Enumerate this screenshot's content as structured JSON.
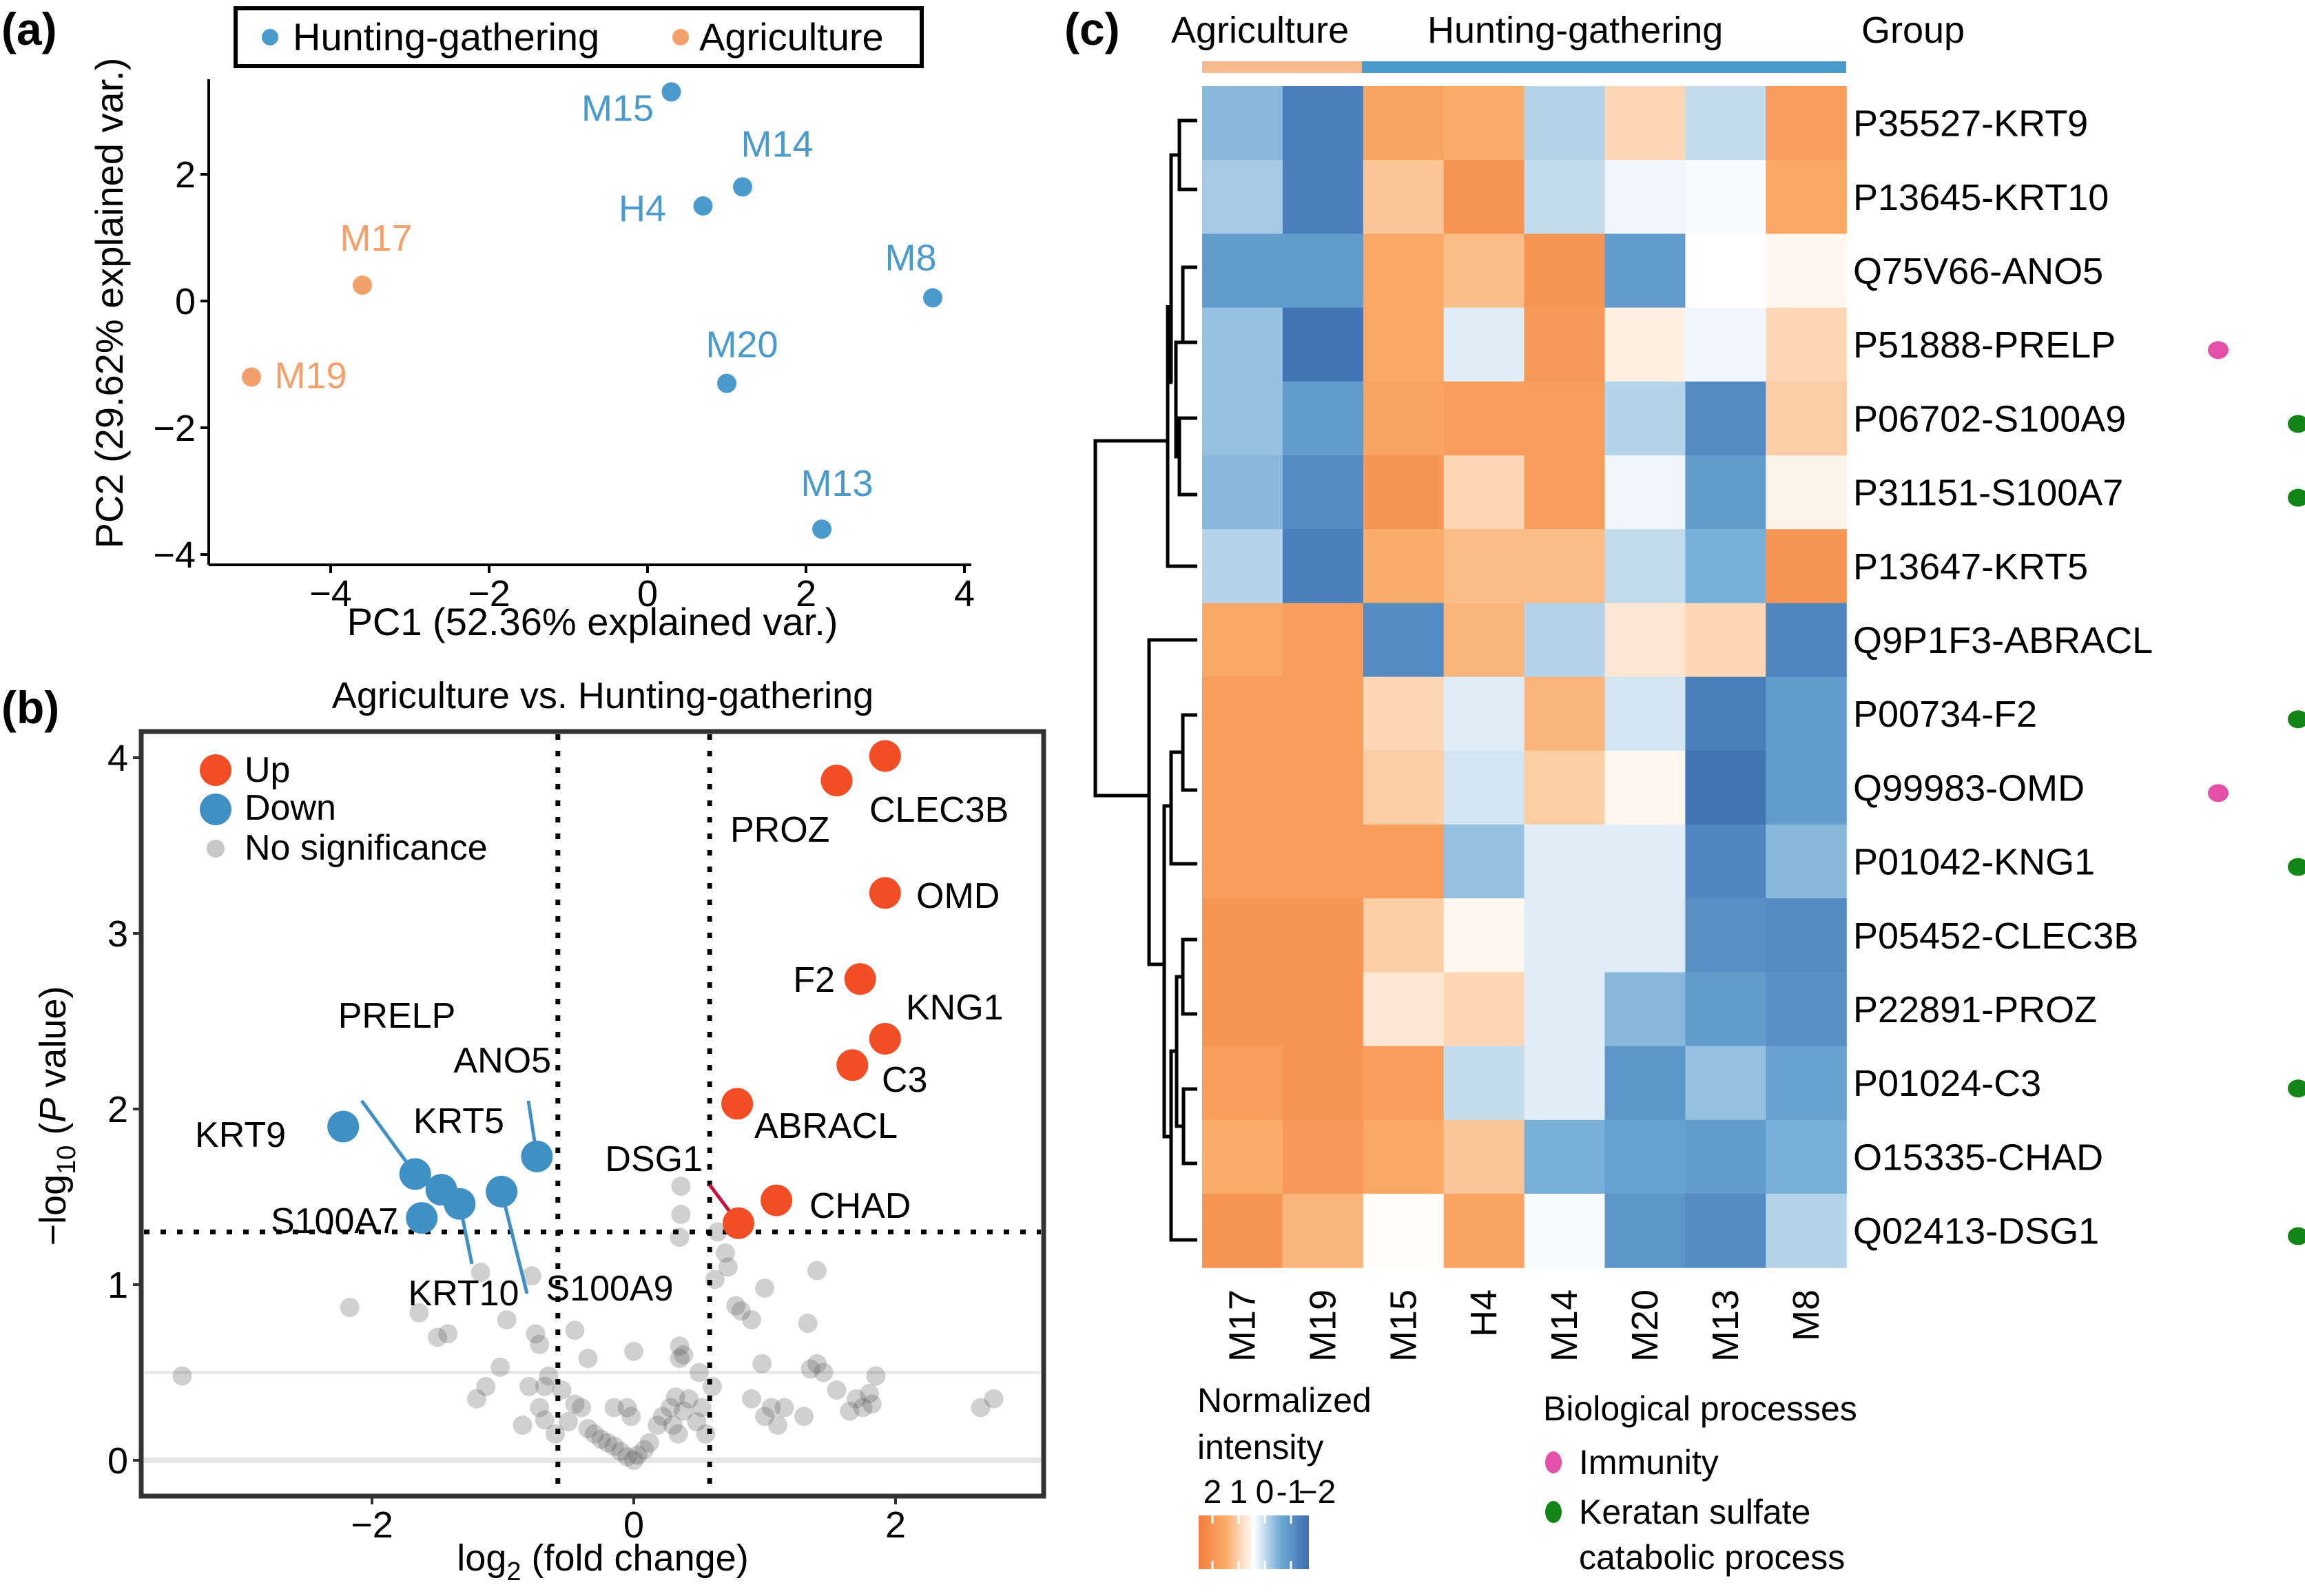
{
  "figure": {
    "panel_labels": [
      "(a)",
      "(b)",
      "(c)"
    ]
  },
  "colors": {
    "hunting_gathering": "#4a9acb",
    "agriculture": "#f4a06b",
    "up": "#f24e26",
    "down": "#3f90c4",
    "no_significance": "#b0b0b0",
    "immunity": "#e34fa9",
    "keratan": "#138518",
    "dsg1_line": "#c8103c"
  },
  "chart_data": [
    {
      "type": "scatter",
      "id": "pca",
      "xlabel": "PC1 (52.36% explained var.)",
      "ylabel": "PC2 (29.62% explained var.)",
      "xlim": [
        -5.4,
        4.0
      ],
      "ylim": [
        -4.1,
        3.6
      ],
      "xticks": [
        -4,
        -2,
        0,
        2,
        4
      ],
      "yticks": [
        -4,
        -2,
        0,
        2
      ],
      "grid": false,
      "legend": {
        "placement": "top",
        "entries": [
          "Hunting-gathering",
          "Agriculture"
        ]
      },
      "points": [
        {
          "label": "M15",
          "group": "Hunting-gathering",
          "x": 0.3,
          "y": 3.3
        },
        {
          "label": "M14",
          "group": "Hunting-gathering",
          "x": 1.2,
          "y": 1.8
        },
        {
          "label": "H4",
          "group": "Hunting-gathering",
          "x": 0.7,
          "y": 1.5
        },
        {
          "label": "M8",
          "group": "Hunting-gathering",
          "x": 3.6,
          "y": 0.05
        },
        {
          "label": "M20",
          "group": "Hunting-gathering",
          "x": 1.0,
          "y": -1.3
        },
        {
          "label": "M13",
          "group": "Hunting-gathering",
          "x": 2.2,
          "y": -3.6
        },
        {
          "label": "M17",
          "group": "Agriculture",
          "x": -3.6,
          "y": 0.25
        },
        {
          "label": "M19",
          "group": "Agriculture",
          "x": -5.0,
          "y": -1.2
        }
      ]
    },
    {
      "type": "scatter",
      "id": "volcano",
      "title": "Agriculture vs. Hunting-gathering",
      "xlabel": "log2 (fold change)",
      "ylabel": "-log10 (P value)",
      "xlim": [
        -3.7,
        3.2
      ],
      "ylim": [
        -0.1,
        4.2
      ],
      "xticks": [
        -2,
        0,
        2
      ],
      "yticks": [
        0,
        1,
        2,
        3,
        4
      ],
      "thresholds": {
        "fc": [
          -0.58,
          0.58
        ],
        "p": 1.3
      },
      "reference_lines": [
        0,
        0.5
      ],
      "legend": {
        "placement": "top-left",
        "entries": [
          "Up",
          "Down",
          "No significance"
        ]
      },
      "up": [
        {
          "label": "CLEC3B",
          "x": 1.92,
          "y": 4.01
        },
        {
          "label": "PROZ",
          "x": 1.55,
          "y": 3.87
        },
        {
          "label": "OMD",
          "x": 1.92,
          "y": 3.23
        },
        {
          "label": "F2",
          "x": 1.73,
          "y": 2.74
        },
        {
          "label": "KNG1",
          "x": 1.92,
          "y": 2.4
        },
        {
          "label": "C3",
          "x": 1.67,
          "y": 2.25
        },
        {
          "label": "ABRACL",
          "x": 0.79,
          "y": 2.03
        },
        {
          "label": "CHAD",
          "x": 1.09,
          "y": 1.48
        },
        {
          "label": "DSG1",
          "x": 0.8,
          "y": 1.35
        }
      ],
      "down": [
        {
          "label": "KRT9",
          "x": -2.22,
          "y": 1.9
        },
        {
          "label": "ANO5",
          "x": -0.74,
          "y": 1.73
        },
        {
          "label": "PRELP",
          "x": -1.67,
          "y": 1.63
        },
        {
          "label": "KRT5",
          "x": -1.47,
          "y": 1.54
        },
        {
          "label": "S100A9",
          "x": -1.01,
          "y": 1.53
        },
        {
          "label": "KRT10",
          "x": -1.33,
          "y": 1.46
        },
        {
          "label": "S100A7",
          "x": -1.62,
          "y": 1.38
        }
      ],
      "no_significance": [
        [
          -3.45,
          0.48
        ],
        [
          -2.17,
          0.87
        ],
        [
          -1.17,
          1.07
        ],
        [
          -0.78,
          1.05
        ],
        [
          -1.64,
          0.84
        ],
        [
          -1.5,
          0.7
        ],
        [
          -1.42,
          0.72
        ],
        [
          -0.97,
          0.8
        ],
        [
          -0.75,
          0.72
        ],
        [
          -0.45,
          0.74
        ],
        [
          -0.35,
          0.58
        ],
        [
          -0.72,
          0.66
        ],
        [
          -0.65,
          0.48
        ],
        [
          -0.68,
          0.42
        ],
        [
          -0.8,
          0.42
        ],
        [
          -0.72,
          0.3
        ],
        [
          -0.68,
          0.23
        ],
        [
          -1.13,
          0.42
        ],
        [
          -1.2,
          0.35
        ],
        [
          -1.02,
          0.53
        ],
        [
          -0.55,
          0.4
        ],
        [
          -0.45,
          0.32
        ],
        [
          -0.4,
          0.3
        ],
        [
          -0.5,
          0.22
        ],
        [
          -0.6,
          0.15
        ],
        [
          -0.35,
          0.18
        ],
        [
          -0.3,
          0.15
        ],
        [
          -0.25,
          0.12
        ],
        [
          -0.2,
          0.1
        ],
        [
          -0.15,
          0.08
        ],
        [
          -0.1,
          0.05
        ],
        [
          -0.05,
          0.02
        ],
        [
          0.0,
          0.0
        ],
        [
          0.03,
          0.03
        ],
        [
          0.08,
          0.06
        ],
        [
          0.12,
          0.1
        ],
        [
          0.18,
          0.2
        ],
        [
          0.22,
          0.25
        ],
        [
          0.28,
          0.3
        ],
        [
          0.3,
          0.2
        ],
        [
          0.34,
          0.15
        ],
        [
          0.38,
          0.28
        ],
        [
          0.42,
          0.35
        ],
        [
          0.32,
          0.36
        ],
        [
          0.38,
          0.6
        ],
        [
          0.35,
          0.65
        ],
        [
          0.5,
          0.5
        ],
        [
          0.52,
          0.3
        ],
        [
          0.55,
          0.15
        ],
        [
          0.48,
          0.22
        ],
        [
          -0.15,
          0.3
        ],
        [
          -0.05,
          0.3
        ],
        [
          0.36,
          1.4
        ],
        [
          0.36,
          1.56
        ],
        [
          0.35,
          1.27
        ],
        [
          0.64,
          1.3
        ],
        [
          0.7,
          1.18
        ],
        [
          0.72,
          1.1
        ],
        [
          0.62,
          1.03
        ],
        [
          0.78,
          0.88
        ],
        [
          0.82,
          0.85
        ],
        [
          0.9,
          0.8
        ],
        [
          1.0,
          0.98
        ],
        [
          1.4,
          1.08
        ],
        [
          1.33,
          0.78
        ],
        [
          0.98,
          0.55
        ],
        [
          0.9,
          0.35
        ],
        [
          1.0,
          0.25
        ],
        [
          1.05,
          0.3
        ],
        [
          1.1,
          0.2
        ],
        [
          1.15,
          0.3
        ],
        [
          1.3,
          0.25
        ],
        [
          1.35,
          0.52
        ],
        [
          1.4,
          0.55
        ],
        [
          1.45,
          0.5
        ],
        [
          1.55,
          0.4
        ],
        [
          1.65,
          0.28
        ],
        [
          1.7,
          0.35
        ],
        [
          1.75,
          0.3
        ],
        [
          1.8,
          0.38
        ],
        [
          1.85,
          0.48
        ],
        [
          1.82,
          0.32
        ],
        [
          2.65,
          0.3
        ],
        [
          2.75,
          0.35
        ],
        [
          0.0,
          0.62
        ],
        [
          0.35,
          0.58
        ],
        [
          0.6,
          0.42
        ],
        [
          -0.02,
          0.25
        ],
        [
          -0.85,
          0.2
        ]
      ]
    },
    {
      "type": "heatmap",
      "id": "heatmap",
      "group_annotation_title": "Group",
      "groups": [
        {
          "name": "Agriculture",
          "columns": [
            "M17",
            "M19"
          ]
        },
        {
          "name": "Hunting-gathering",
          "columns": [
            "M15",
            "H4",
            "M14",
            "M20",
            "M13",
            "M8"
          ]
        }
      ],
      "columns": [
        "M17",
        "M19",
        "M15",
        "H4",
        "M14",
        "M20",
        "M13",
        "M8"
      ],
      "rows": [
        "P35527-KRT9",
        "P13645-KRT10",
        "Q75V66-ANO5",
        "P51888-PRELP",
        "P06702-S100A9",
        "P31151-S100A7",
        "P13647-KRT5",
        "Q9P1F3-ABRACL",
        "P00734-F2",
        "Q99983-OMD",
        "P01042-KNG1",
        "P05452-CLEC3B",
        "P22891-PROZ",
        "P01024-C3",
        "O15335-CHAD",
        "Q02413-DSG1"
      ],
      "values": [
        [
          -0.8,
          -1.7,
          1.2,
          1.0,
          -0.5,
          0.5,
          -0.4,
          1.3
        ],
        [
          -0.6,
          -1.7,
          0.7,
          1.5,
          -0.4,
          -0.1,
          -0.05,
          1.1
        ],
        [
          -1.2,
          -1.2,
          1.1,
          0.8,
          1.5,
          -1.2,
          0.0,
          0.1
        ],
        [
          -0.7,
          -1.9,
          1.1,
          -0.2,
          1.4,
          0.2,
          -0.1,
          0.5
        ],
        [
          -0.7,
          -1.2,
          1.2,
          1.3,
          1.3,
          -0.5,
          -1.5,
          0.6
        ],
        [
          -0.8,
          -1.5,
          1.5,
          0.5,
          1.3,
          -0.1,
          -1.2,
          0.15
        ],
        [
          -0.5,
          -1.7,
          1.0,
          0.8,
          0.8,
          -0.4,
          -0.9,
          1.5
        ],
        [
          1.1,
          1.3,
          -1.5,
          0.9,
          -0.5,
          0.3,
          0.5,
          -1.6
        ],
        [
          1.3,
          1.3,
          0.5,
          -0.2,
          0.9,
          -0.3,
          -1.7,
          -1.2
        ],
        [
          1.3,
          1.3,
          0.6,
          -0.3,
          0.6,
          0.1,
          -1.9,
          -1.2
        ],
        [
          1.3,
          1.3,
          1.3,
          -0.7,
          -0.2,
          -0.2,
          -1.6,
          -0.8
        ],
        [
          1.5,
          1.5,
          0.6,
          0.1,
          -0.2,
          -0.2,
          -1.4,
          -1.5
        ],
        [
          1.5,
          1.5,
          0.3,
          0.5,
          -0.2,
          -0.8,
          -1.2,
          -1.4
        ],
        [
          1.3,
          1.5,
          1.3,
          -0.4,
          -0.2,
          -1.3,
          -0.7,
          -1.1
        ],
        [
          1.0,
          1.4,
          1.1,
          0.7,
          -0.9,
          -1.1,
          -1.2,
          -0.9
        ],
        [
          1.5,
          0.9,
          0.02,
          1.2,
          -0.05,
          -1.3,
          -1.5,
          -0.5
        ]
      ],
      "colorbar": {
        "title": "Normalized intensity",
        "ticks": [
          "2",
          "1",
          "0",
          "-1",
          "−2"
        ],
        "range": [
          2,
          -2
        ]
      },
      "annotations": {
        "title": "Biological processes",
        "categories": [
          {
            "name": "Immunity",
            "rows": [
              "P51888-PRELP",
              "Q99983-OMD"
            ]
          },
          {
            "name": "Keratan sulfate catabolic process",
            "rows": [
              "P06702-S100A9",
              "P31151-S100A7",
              "P00734-F2",
              "P01042-KNG1",
              "P01024-C3",
              "Q02413-DSG1"
            ]
          }
        ],
        "legend_lines": [
          "Immunity",
          "Keratan sulfate",
          "catabolic process"
        ]
      },
      "dendrogram": "row clustering shown on left"
    }
  ]
}
